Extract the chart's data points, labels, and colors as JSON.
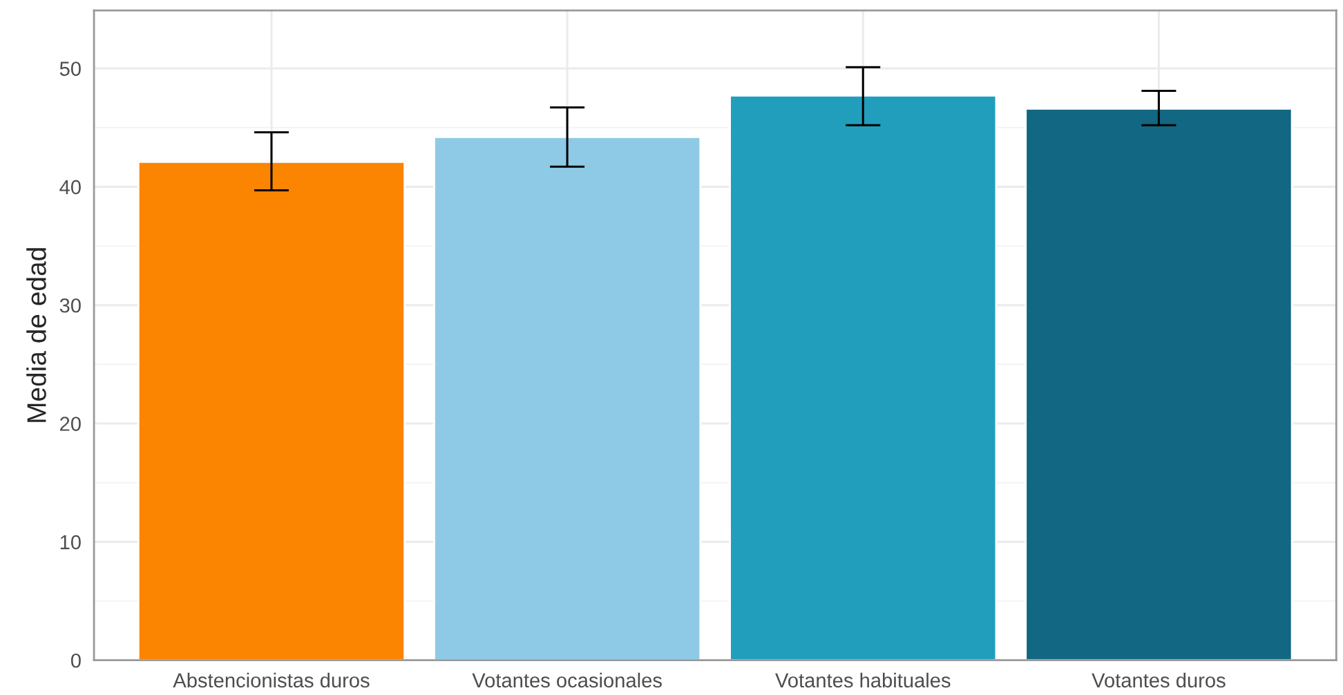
{
  "chart_data": {
    "type": "bar",
    "ylabel": "Media de edad",
    "categories": [
      "Abstencionistas duros",
      "Votantes ocasionales",
      "Votantes habituales",
      "Votantes duros"
    ],
    "values": [
      42.1,
      44.2,
      47.7,
      46.6
    ],
    "colors": [
      "#fb8500",
      "#8ecae6",
      "#219ebc",
      "#126782"
    ],
    "errors": [
      [
        39.7,
        44.6
      ],
      [
        41.7,
        46.7
      ],
      [
        45.2,
        50.1
      ],
      [
        45.2,
        48.1
      ]
    ],
    "ylim": [
      0,
      54.9
    ],
    "yticks": [
      0,
      10,
      20,
      30,
      40,
      50
    ],
    "grid": true
  }
}
